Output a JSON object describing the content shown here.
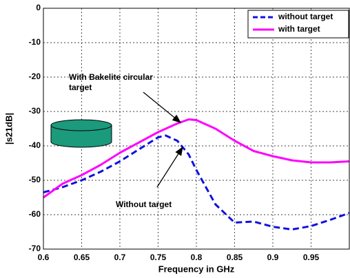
{
  "chart_data": {
    "type": "line",
    "xlabel": "Frequency in GHz",
    "ylabel": "|s21dB|",
    "x": [
      0.6,
      0.625,
      0.65,
      0.675,
      0.7,
      0.725,
      0.75,
      0.76,
      0.775,
      0.79,
      0.8,
      0.825,
      0.85,
      0.875,
      0.9,
      0.925,
      0.95,
      0.975,
      1.0
    ],
    "series": [
      {
        "name": "without target",
        "color": "#1010e0",
        "dashed": true,
        "values": [
          -53.5,
          -52,
          -50,
          -47.5,
          -44.5,
          -41,
          -37.5,
          -37,
          -38.5,
          -42.5,
          -47,
          -57,
          -62.3,
          -62,
          -63.5,
          -64.3,
          -63.3,
          -61.5,
          -59.5
        ]
      },
      {
        "name": "with target",
        "color": "#ff00ff",
        "dashed": false,
        "values": [
          -55,
          -51,
          -48.5,
          -45.5,
          -42,
          -39,
          -36,
          -35,
          -33.5,
          -32.3,
          -32.5,
          -35,
          -38.5,
          -41.5,
          -43,
          -44.2,
          -44.8,
          -44.8,
          -44.5
        ]
      }
    ],
    "xlim": [
      0.6,
      1.0
    ],
    "xticks": [
      0.6,
      0.65,
      0.7,
      0.75,
      0.8,
      0.85,
      0.9,
      0.95
    ],
    "ylim": [
      -70,
      0
    ],
    "yticks": [
      0,
      -10,
      -20,
      -30,
      -40,
      -50,
      -60,
      -70
    ],
    "grid": true,
    "legend": "upper-right",
    "annotations": [
      {
        "lines": [
          "With Bakelite circular",
          "target"
        ],
        "color": "#ff00ff"
      },
      {
        "lines": [
          "Without target"
        ],
        "color": "#1010e0"
      }
    ]
  }
}
